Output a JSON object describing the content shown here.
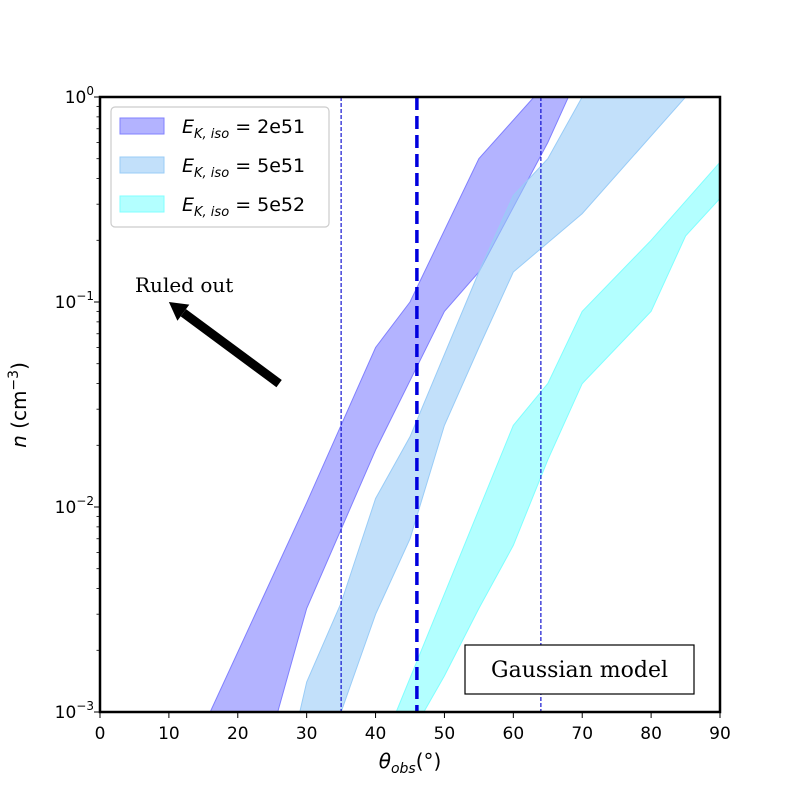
{
  "chart_data": {
    "type": "area",
    "xlabel": "θ_obs(°)",
    "ylabel": "n (cm⁻³)",
    "xlim": [
      0,
      90
    ],
    "ylim": [
      0.001,
      1
    ],
    "yscale": "log",
    "xticks": [
      0,
      10,
      20,
      30,
      40,
      50,
      60,
      70,
      80,
      90
    ],
    "yticks": [
      {
        "value": 0.001,
        "mant": "10",
        "exp": "−3"
      },
      {
        "value": 0.01,
        "mant": "10",
        "exp": "−2"
      },
      {
        "value": 0.1,
        "mant": "10",
        "exp": "−1"
      },
      {
        "value": 1,
        "mant": "10",
        "exp": "0"
      }
    ],
    "series": [
      {
        "name": "E_K,iso = 2e51",
        "label_main": "E",
        "label_sub": "K, iso",
        "label_value": " = 2e51",
        "color": "#8080ff",
        "upper": [
          [
            16,
            0.001
          ],
          [
            30,
            0.0105
          ],
          [
            40,
            0.06
          ],
          [
            45,
            0.1
          ],
          [
            55,
            0.5
          ],
          [
            63,
            1.0
          ]
        ],
        "lower": [
          [
            25.8,
            0.001
          ],
          [
            30,
            0.0032
          ],
          [
            40,
            0.019
          ],
          [
            50,
            0.09
          ],
          [
            55,
            0.14
          ],
          [
            65,
            0.6
          ],
          [
            68,
            1.0
          ]
        ]
      },
      {
        "name": "E_K,iso = 5e51",
        "label_main": "E",
        "label_sub": "K, iso",
        "label_value": " = 5e51",
        "color": "#99ccf7",
        "upper": [
          [
            29,
            0.001
          ],
          [
            30,
            0.0014
          ],
          [
            35,
            0.0034
          ],
          [
            40,
            0.011
          ],
          [
            45,
            0.022
          ],
          [
            55,
            0.14
          ],
          [
            60,
            0.33
          ],
          [
            65,
            0.5
          ],
          [
            70,
            1.0
          ]
        ],
        "lower": [
          [
            35,
            0.001
          ],
          [
            40,
            0.003
          ],
          [
            45,
            0.007
          ],
          [
            50,
            0.025
          ],
          [
            55,
            0.06
          ],
          [
            60,
            0.14
          ],
          [
            70,
            0.27
          ],
          [
            85,
            1.0
          ]
        ]
      },
      {
        "name": "E_K,iso = 5e52",
        "label_main": "E",
        "label_sub": "K, iso",
        "label_value": " = 5e52",
        "color": "#80ffff",
        "upper": [
          [
            43,
            0.001
          ],
          [
            60,
            0.025
          ],
          [
            65,
            0.04
          ],
          [
            70,
            0.09
          ],
          [
            80,
            0.2
          ],
          [
            90,
            0.48
          ]
        ],
        "lower": [
          [
            47,
            0.001
          ],
          [
            50,
            0.0015
          ],
          [
            55,
            0.0032
          ],
          [
            60,
            0.0065
          ],
          [
            65,
            0.017
          ],
          [
            70,
            0.04
          ],
          [
            80,
            0.09
          ],
          [
            85,
            0.21
          ],
          [
            90,
            0.32
          ]
        ]
      }
    ],
    "vlines": [
      {
        "x": 35,
        "style": "thin-dashed",
        "color": "#0000cc"
      },
      {
        "x": 46,
        "style": "thick-dashed",
        "color": "#0000dd"
      },
      {
        "x": 64,
        "style": "thin-dashed",
        "color": "#0000cc"
      }
    ],
    "annotations": {
      "ruled_out": "Ruled out",
      "model": "Gaussian model"
    },
    "arrow": {
      "from": [
        26,
        0.04
      ],
      "to": [
        10,
        0.1
      ]
    },
    "legend_location": "top-left"
  }
}
